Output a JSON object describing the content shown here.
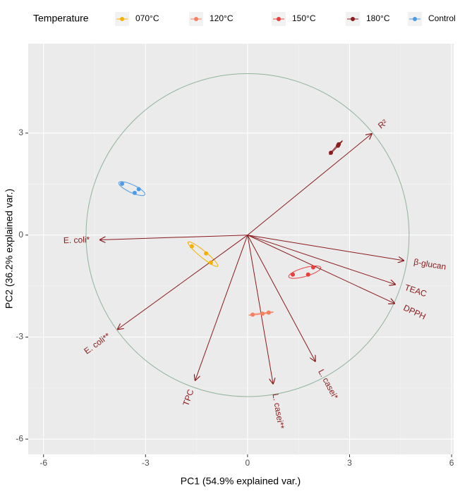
{
  "chart_data": {
    "type": "biplot",
    "xlabel": "PC1 (54.9% explained var.)",
    "ylabel": "PC2 (36.2% explained var.)",
    "xlim": [
      -6.45,
      6.06
    ],
    "ylim": [
      -6.45,
      5.63
    ],
    "xticks": [
      -6,
      -3,
      0,
      3,
      6
    ],
    "yticks": [
      -6,
      -3,
      0,
      3
    ],
    "grid": true,
    "legend_title": "Temperature",
    "legend_position": "top",
    "circle_radius": 4.75,
    "series": [
      {
        "name": "070°C",
        "color": "#f5b000",
        "x": [
          -1.64,
          -1.22,
          -1.08
        ],
        "values": [
          -0.33,
          -0.54,
          -0.81
        ]
      },
      {
        "name": "120°C",
        "color": "#f4805f",
        "x": [
          0.15,
          0.44,
          0.62
        ],
        "values": [
          -2.34,
          -2.31,
          -2.28
        ]
      },
      {
        "name": "150°C",
        "color": "#e8403c",
        "x": [
          1.33,
          1.78,
          1.93
        ],
        "values": [
          -1.16,
          -1.16,
          -0.95
        ]
      },
      {
        "name": "180°C",
        "color": "#8b1c1c",
        "x": [
          2.45,
          2.66,
          2.68
        ],
        "values": [
          2.42,
          2.63,
          2.67
        ]
      },
      {
        "name": "Control",
        "color": "#4d9be6",
        "x": [
          -3.69,
          -3.32,
          -3.2
        ],
        "values": [
          1.51,
          1.24,
          1.35
        ]
      }
    ],
    "loadings": [
      {
        "label": "E. coli*",
        "x": -4.34,
        "y": -0.14
      },
      {
        "label": "E. coli**",
        "x": -3.82,
        "y": -2.77
      },
      {
        "label": "TPC",
        "x": -1.54,
        "y": -4.27
      },
      {
        "label": "L. casei**",
        "x": 0.75,
        "y": -4.37
      },
      {
        "label": "L. casei*",
        "x": 1.99,
        "y": -3.71
      },
      {
        "label": "DPPH",
        "x": 4.32,
        "y": -2.01
      },
      {
        "label": "TEAC",
        "x": 4.34,
        "y": -1.45
      },
      {
        "label": "β-glucan",
        "x": 4.59,
        "y": -0.75
      },
      {
        "label": "R²",
        "x": 3.65,
        "y": 2.98
      }
    ]
  }
}
